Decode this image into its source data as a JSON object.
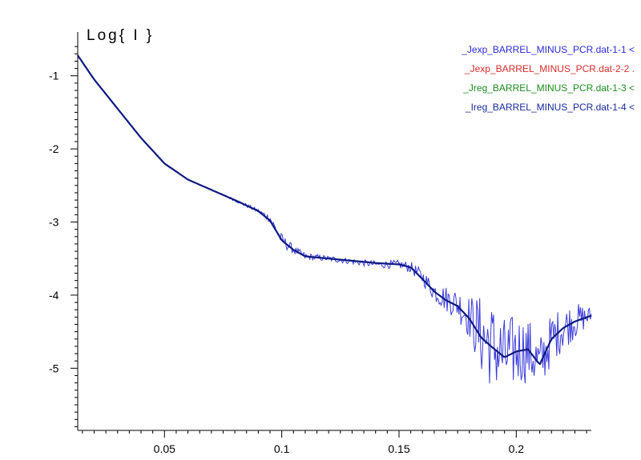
{
  "chart_data": {
    "type": "line",
    "title": "",
    "ylabel": "Log{ I }",
    "xlabel": "",
    "xlim": [
      0.013,
      0.232
    ],
    "ylim": [
      -5.85,
      -0.62
    ],
    "x_ticks": [
      {
        "value": 0.05,
        "label": "0.05"
      },
      {
        "value": 0.1,
        "label": "0.1"
      },
      {
        "value": 0.15,
        "label": "0.15"
      },
      {
        "value": 0.2,
        "label": "0.2"
      }
    ],
    "y_ticks": [
      {
        "value": -1,
        "label": "-1"
      },
      {
        "value": -2,
        "label": "-2"
      },
      {
        "value": -3,
        "label": "-3"
      },
      {
        "value": -4,
        "label": "-4"
      },
      {
        "value": -5,
        "label": "-5"
      }
    ],
    "grid": false,
    "legend_position": "top-right",
    "legend": [
      {
        "label": "_Jexp_BARREL_MINUS_PCR.dat-1-1 <",
        "color": "#2b2bd9"
      },
      {
        "label": "_Jexp_BARREL_MINUS_PCR.dat-2-2  .",
        "color": "#d92b2b"
      },
      {
        "label": "_Jreg_BARREL_MINUS_PCR.dat-1-3 <",
        "color": "#1e8c1e"
      },
      {
        "label": "_Ireg_BARREL_MINUS_PCR.dat-1-4 <",
        "color": "#1a2a9c"
      }
    ],
    "series": [
      {
        "role": "experimental",
        "color": "#3b3bdc",
        "x": [
          0.013,
          0.02,
          0.03,
          0.04,
          0.05,
          0.06,
          0.07,
          0.08,
          0.09,
          0.095,
          0.1,
          0.105,
          0.11,
          0.12,
          0.13,
          0.14,
          0.15,
          0.155,
          0.16,
          0.165,
          0.17,
          0.175,
          0.18,
          0.185,
          0.19,
          0.195,
          0.2,
          0.205,
          0.21,
          0.215,
          0.22,
          0.225,
          0.232
        ],
        "y": [
          -0.72,
          -1.05,
          -1.45,
          -1.85,
          -2.2,
          -2.42,
          -2.56,
          -2.7,
          -2.85,
          -2.95,
          -3.25,
          -3.38,
          -3.47,
          -3.5,
          -3.54,
          -3.58,
          -3.58,
          -3.62,
          -3.75,
          -3.95,
          -4.05,
          -4.12,
          -4.3,
          -4.55,
          -4.7,
          -4.85,
          -4.75,
          -4.75,
          -4.95,
          -4.6,
          -4.45,
          -4.35,
          -4.28
        ],
        "noise": [
          0.0,
          0.0,
          0.0,
          0.0,
          0.0,
          0.0,
          0.0,
          0.02,
          0.03,
          0.06,
          0.09,
          0.06,
          0.05,
          0.04,
          0.04,
          0.05,
          0.06,
          0.08,
          0.1,
          0.14,
          0.18,
          0.22,
          0.3,
          0.55,
          0.6,
          0.55,
          0.5,
          0.45,
          0.4,
          0.35,
          0.3,
          0.25,
          0.12
        ]
      },
      {
        "role": "regularized-fit",
        "color": "#0d1a80",
        "x": [
          0.013,
          0.02,
          0.03,
          0.04,
          0.05,
          0.06,
          0.07,
          0.08,
          0.09,
          0.095,
          0.1,
          0.105,
          0.11,
          0.12,
          0.13,
          0.14,
          0.15,
          0.155,
          0.16,
          0.165,
          0.17,
          0.175,
          0.18,
          0.185,
          0.19,
          0.195,
          0.2,
          0.205,
          0.21,
          0.215,
          0.22,
          0.225,
          0.232
        ],
        "y": [
          -0.72,
          -1.05,
          -1.45,
          -1.85,
          -2.2,
          -2.42,
          -2.56,
          -2.7,
          -2.85,
          -2.98,
          -3.25,
          -3.38,
          -3.47,
          -3.5,
          -3.53,
          -3.56,
          -3.58,
          -3.62,
          -3.78,
          -3.95,
          -4.07,
          -4.15,
          -4.32,
          -4.58,
          -4.72,
          -4.85,
          -4.77,
          -4.74,
          -4.95,
          -4.6,
          -4.45,
          -4.36,
          -4.28
        ]
      }
    ]
  }
}
